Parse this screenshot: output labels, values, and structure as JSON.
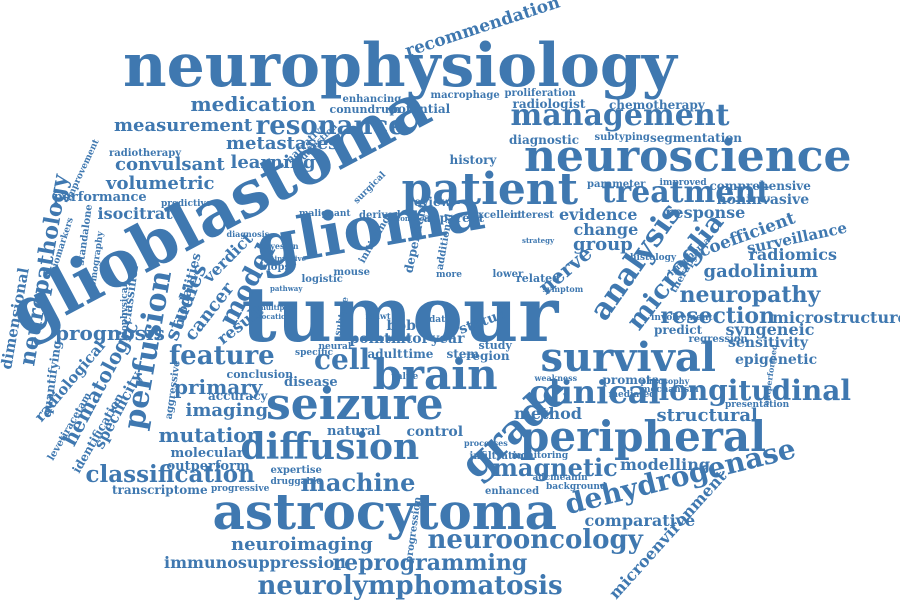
{
  "color": "#3f78b0",
  "words": [
    {
      "t": "neurophysiology"
    },
    {
      "t": "recommendation"
    },
    {
      "t": "glioblastoma"
    },
    {
      "t": "glioma"
    },
    {
      "t": "tumour"
    },
    {
      "t": "neuroscience"
    },
    {
      "t": "patient"
    },
    {
      "t": "astrocytoma"
    },
    {
      "t": "seizure"
    },
    {
      "t": "brain"
    },
    {
      "t": "survival"
    },
    {
      "t": "peripheral"
    },
    {
      "t": "grade"
    },
    {
      "t": "diffusion"
    },
    {
      "t": "dehydrogenase"
    },
    {
      "t": "neurolymphomatosis"
    },
    {
      "t": "reprogramming"
    },
    {
      "t": "neurooncology"
    },
    {
      "t": "neuroimaging"
    },
    {
      "t": "immunosuppression"
    },
    {
      "t": "classification"
    },
    {
      "t": "machine"
    },
    {
      "t": "magnetic"
    },
    {
      "t": "clinical"
    },
    {
      "t": "longitudinal"
    },
    {
      "t": "management"
    },
    {
      "t": "resonance"
    },
    {
      "t": "metastases"
    },
    {
      "t": "medication"
    },
    {
      "t": "measurement"
    },
    {
      "t": "convulsant"
    },
    {
      "t": "learning"
    },
    {
      "t": "volumetric"
    },
    {
      "t": "isocitrate"
    },
    {
      "t": "treatment"
    },
    {
      "t": "analysis"
    },
    {
      "t": "microglia"
    },
    {
      "t": "neuropathy"
    },
    {
      "t": "resection"
    },
    {
      "t": "microstructure"
    },
    {
      "t": "gadolinium"
    },
    {
      "t": "radiomics"
    },
    {
      "t": "perfusion"
    },
    {
      "t": "feature"
    },
    {
      "t": "primary"
    },
    {
      "t": "imaging"
    },
    {
      "t": "mutation"
    },
    {
      "t": "cell"
    },
    {
      "t": "nerve"
    },
    {
      "t": "prognosis"
    },
    {
      "t": "neuropathology"
    },
    {
      "t": "hematologic"
    },
    {
      "t": "structural"
    },
    {
      "t": "modelling"
    },
    {
      "t": "comparative"
    },
    {
      "t": "microenvironment"
    },
    {
      "t": "model"
    },
    {
      "t": "studies"
    },
    {
      "t": "cancer"
    },
    {
      "t": "verdict"
    },
    {
      "t": "result"
    },
    {
      "t": "group"
    },
    {
      "t": "change"
    },
    {
      "t": "evidence"
    },
    {
      "t": "response"
    },
    {
      "t": "coefficient"
    },
    {
      "t": "surveillance"
    },
    {
      "t": "noninvasive"
    },
    {
      "t": "comprehensive"
    },
    {
      "t": "syngeneic"
    },
    {
      "t": "sensitivity"
    },
    {
      "t": "epigenetic"
    },
    {
      "t": "method"
    },
    {
      "t": "control"
    },
    {
      "t": "natural"
    },
    {
      "t": "molecular"
    },
    {
      "t": "outperform"
    },
    {
      "t": "transcriptome"
    },
    {
      "t": "accuracy"
    },
    {
      "t": "conclusion"
    },
    {
      "t": "disease"
    },
    {
      "t": "mtor"
    },
    {
      "t": "year"
    },
    {
      "t": "point"
    },
    {
      "t": "bbb"
    },
    {
      "t": "adult"
    },
    {
      "t": "time"
    },
    {
      "t": "stem"
    },
    {
      "t": "region"
    },
    {
      "t": "study"
    },
    {
      "t": "status"
    },
    {
      "t": "history"
    },
    {
      "t": "review"
    },
    {
      "t": "apparent"
    },
    {
      "t": "excellent"
    },
    {
      "t": "interest"
    },
    {
      "t": "diagnostic"
    },
    {
      "t": "radiologist"
    },
    {
      "t": "chemotherapy"
    },
    {
      "t": "segmentation"
    },
    {
      "t": "subtyping"
    },
    {
      "t": "proliferation"
    },
    {
      "t": "macrophage"
    },
    {
      "t": "conundrum"
    },
    {
      "t": "potential"
    },
    {
      "t": "enhancing"
    },
    {
      "t": "parameter"
    },
    {
      "t": "improved"
    },
    {
      "t": "dimensional"
    },
    {
      "t": "performance"
    },
    {
      "t": "specificity"
    },
    {
      "t": "radiological"
    },
    {
      "t": "quantifying"
    },
    {
      "t": "identification"
    },
    {
      "t": "levetiracetam"
    },
    {
      "t": "aggressive"
    },
    {
      "t": "modalities"
    },
    {
      "t": "classifier"
    },
    {
      "t": "standalone"
    },
    {
      "t": "biomarkers"
    },
    {
      "t": "tomography"
    },
    {
      "t": "biophysical"
    },
    {
      "t": "radiotherapy"
    },
    {
      "t": "improvement"
    },
    {
      "t": "predictive"
    },
    {
      "t": "narrative"
    },
    {
      "t": "detection"
    },
    {
      "t": "surgical"
    },
    {
      "t": "malignant"
    },
    {
      "t": "derived"
    },
    {
      "t": "diagnosis"
    },
    {
      "t": "bayesian"
    },
    {
      "t": "biopsy"
    },
    {
      "t": "logistic"
    },
    {
      "t": "mouse"
    },
    {
      "t": "neural"
    },
    {
      "t": "specific"
    },
    {
      "t": "subtype"
    },
    {
      "t": "value"
    },
    {
      "t": "infiltration"
    },
    {
      "t": "monitoring"
    },
    {
      "t": "enhanced"
    },
    {
      "t": "background"
    },
    {
      "t": "expertise"
    },
    {
      "t": "druggable"
    },
    {
      "t": "progressive"
    },
    {
      "t": "progression"
    },
    {
      "t": "processes"
    },
    {
      "t": "promote"
    },
    {
      "t": "mediated"
    },
    {
      "t": "mechanism"
    },
    {
      "t": "presentation"
    },
    {
      "t": "philosophy"
    },
    {
      "t": "regression"
    },
    {
      "t": "predict"
    },
    {
      "t": "involvement"
    },
    {
      "t": "histology"
    },
    {
      "t": "lymphoma"
    },
    {
      "t": "therapy"
    },
    {
      "t": "related"
    },
    {
      "t": "lower"
    },
    {
      "t": "symptom"
    },
    {
      "t": "weakness"
    },
    {
      "t": "adcmeanin"
    },
    {
      "t": "outperformed"
    },
    {
      "t": "data"
    },
    {
      "t": "more"
    },
    {
      "t": "idhwt"
    },
    {
      "t": "initiating"
    },
    {
      "t": "dependent"
    },
    {
      "t": "additional"
    },
    {
      "t": "common"
    },
    {
      "t": "strategy"
    },
    {
      "t": "location"
    },
    {
      "t": "multiple"
    },
    {
      "t": "pathway"
    },
    {
      "t": "invasive"
    }
  ]
}
